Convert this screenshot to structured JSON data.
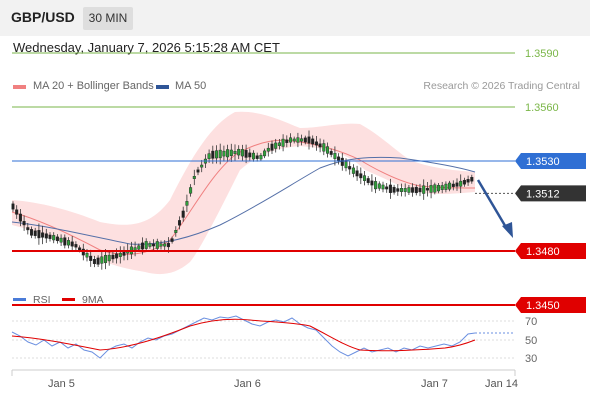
{
  "header": {
    "pair": "GBP/USD",
    "timeframe": "30 MIN"
  },
  "datetime": "Wednesday, January 7, 2026 5:15:28 AM CET",
  "legend": {
    "ma_bb": {
      "label": "MA 20 + Bollinger Bands",
      "color": "#f08080"
    },
    "ma50": {
      "label": "MA 50",
      "color": "#2f5597"
    }
  },
  "credit": "Research © 2026 Trading Central",
  "levels": [
    {
      "label": "1.3590",
      "value": 1.359,
      "kind": "target",
      "color": "#7ab648"
    },
    {
      "label": "1.3560",
      "value": 1.356,
      "kind": "target",
      "color": "#7ab648"
    },
    {
      "label": "1.3530",
      "value": 1.353,
      "kind": "pivot",
      "color": "#2f6fd4"
    },
    {
      "label": "1.3512",
      "value": 1.3512,
      "kind": "current",
      "color": "#333333"
    },
    {
      "label": "1.3480",
      "value": 1.348,
      "kind": "support",
      "color": "#e00000"
    },
    {
      "label": "1.3450",
      "value": 1.345,
      "kind": "support",
      "color": "#e00000"
    }
  ],
  "rsi_legend": {
    "rsi": {
      "label": "RSI",
      "color": "#4a7bd8"
    },
    "ma9": {
      "label": "9MA",
      "color": "#e00000"
    }
  },
  "rsi_ticks": [
    "70",
    "50",
    "30"
  ],
  "x_labels": [
    "Jan 5",
    "Jan 6",
    "Jan 7",
    "Jan 14"
  ]
}
